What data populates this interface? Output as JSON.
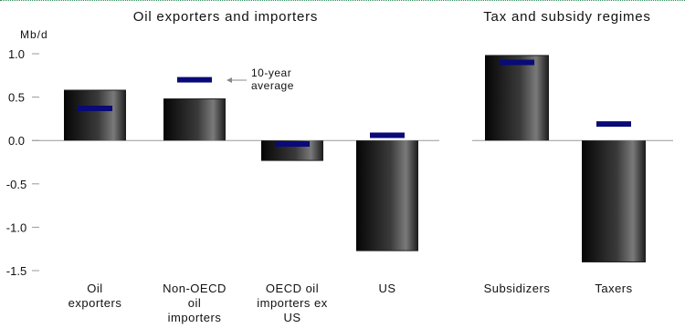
{
  "chart_data": [
    {
      "type": "bar",
      "title": "Oil exporters and importers",
      "ylabel": "Mb/d",
      "ylim": [
        -1.5,
        1.0
      ],
      "yticks": [
        1.0,
        0.5,
        0.0,
        -0.5,
        -1.0,
        -1.5
      ],
      "ytick_labels": [
        "1.0",
        "0.5",
        "0.0",
        "-0.5",
        "-1.0",
        "-1.5"
      ],
      "categories": [
        [
          "Oil",
          "exporters"
        ],
        [
          "Non-OECD",
          "oil",
          "importers"
        ],
        [
          "OECD oil",
          "importers ex",
          "US"
        ],
        [
          "US"
        ]
      ],
      "series": [
        {
          "values": [
            0.58,
            0.48,
            -0.23,
            -1.27
          ],
          "mark": "bar"
        },
        {
          "values": [
            0.37,
            0.7,
            -0.04,
            0.06
          ],
          "mark": "dash",
          "color": "#0a0a78"
        }
      ],
      "annotation": [
        "10-year",
        "average"
      ],
      "grid": false
    },
    {
      "type": "bar",
      "title": "Tax and subsidy regimes",
      "ylim": [
        -1.5,
        1.0
      ],
      "categories": [
        [
          "Subsidizers"
        ],
        [
          "Taxers"
        ]
      ],
      "series": [
        {
          "values": [
            0.98,
            -1.4
          ],
          "mark": "bar"
        },
        {
          "values": [
            0.9,
            0.19
          ],
          "mark": "dash",
          "color": "#0a0a78"
        }
      ],
      "grid": false
    }
  ]
}
